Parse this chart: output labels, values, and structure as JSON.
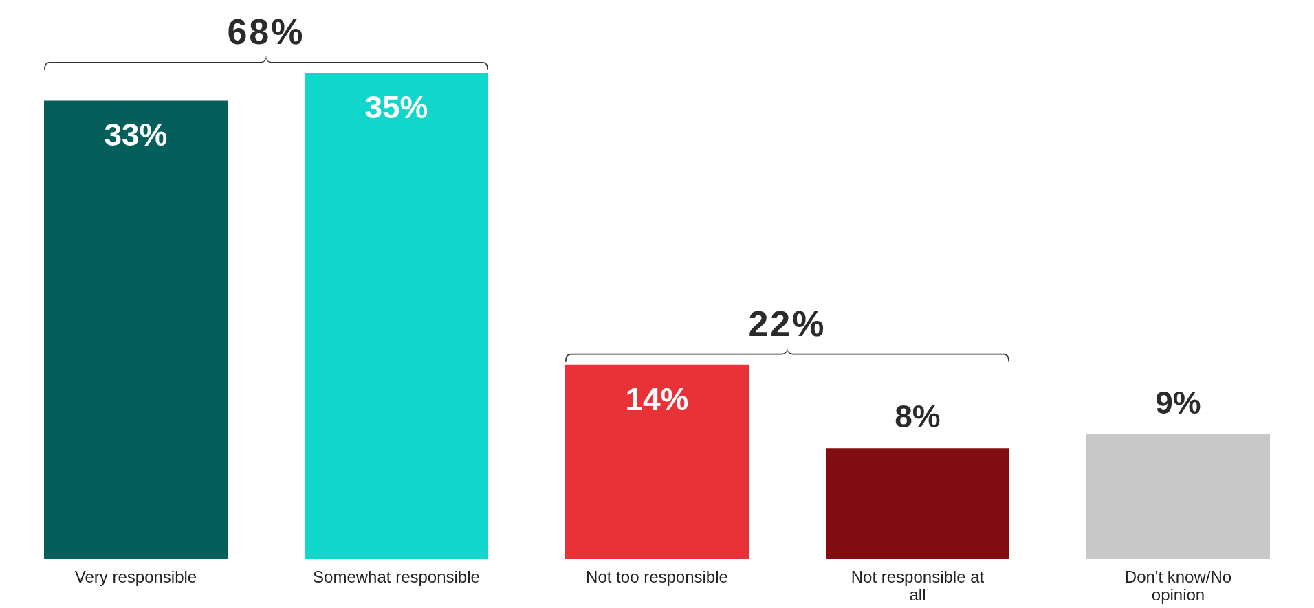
{
  "chart_data": {
    "type": "bar",
    "categories": [
      "Very responsible",
      "Somewhat responsible",
      "Not too responsible",
      "Not responsible at all",
      "Don't know/No opinion"
    ],
    "values": [
      33,
      35,
      14,
      8,
      9
    ],
    "colors": [
      "#045e5c",
      "#10d6cc",
      "#e83237",
      "#800e11",
      "#c8c8c8"
    ],
    "value_labels": [
      "33%",
      "35%",
      "14%",
      "8%",
      "9%"
    ],
    "annotations": [
      "68%",
      "22%"
    ],
    "grid": false,
    "legend": false
  }
}
